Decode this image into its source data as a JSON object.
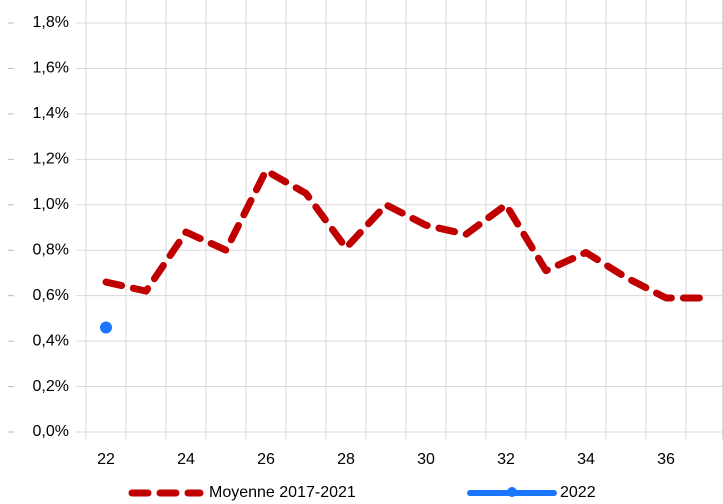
{
  "chart_data": {
    "type": "line",
    "categories": [
      "22",
      null,
      "24",
      null,
      "26",
      null,
      "28",
      null,
      "30",
      null,
      "32",
      null,
      "34",
      null,
      "36",
      null
    ],
    "series": [
      {
        "name": "Moyenne 2017-2021",
        "color": "#c00000",
        "values": [
          0.66,
          0.62,
          0.88,
          0.8,
          1.15,
          1.05,
          0.81,
          1.0,
          0.91,
          0.87,
          1.0,
          0.71,
          0.79,
          0.68,
          0.59,
          0.59
        ]
      },
      {
        "name": "2022",
        "color": "#1a75ff",
        "values": [
          0.46,
          null,
          null,
          null,
          null,
          null,
          null,
          null,
          null,
          null,
          null,
          null,
          null,
          null,
          null,
          null
        ]
      }
    ],
    "ylim": [
      0,
      1.8
    ],
    "yticks": [
      {
        "value": 0,
        "label": "0,0%"
      },
      {
        "value": 0.2,
        "label": "0,2%"
      },
      {
        "value": 0.4,
        "label": "0,4%"
      },
      {
        "value": 0.6,
        "label": "0,6%"
      },
      {
        "value": 0.8,
        "label": "0,8%"
      },
      {
        "value": 1.0,
        "label": "1,0%"
      },
      {
        "value": 1.2,
        "label": "1,2%"
      },
      {
        "value": 1.4,
        "label": "1,4%"
      },
      {
        "value": 1.6,
        "label": "1,6%"
      },
      {
        "value": 1.8,
        "label": "1,8%"
      }
    ],
    "grid": true,
    "legend": "bottom"
  }
}
